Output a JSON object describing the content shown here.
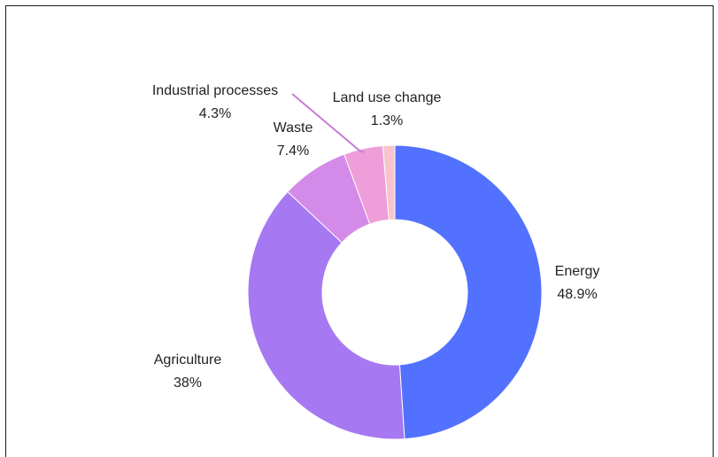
{
  "chart_data": {
    "type": "pie",
    "donut": true,
    "categories": [
      "Energy",
      "Agriculture",
      "Waste",
      "Industrial processes",
      "Land use change"
    ],
    "values": [
      48.9,
      38,
      7.4,
      4.3,
      1.3
    ],
    "value_labels": [
      "48.9%",
      "38%",
      "7.4%",
      "4.3%",
      "1.3%"
    ],
    "colors": [
      "#5271ff",
      "#a678f2",
      "#d48ae8",
      "#ee9ed8",
      "#f7c3cc"
    ],
    "title": "",
    "legend": "none"
  }
}
